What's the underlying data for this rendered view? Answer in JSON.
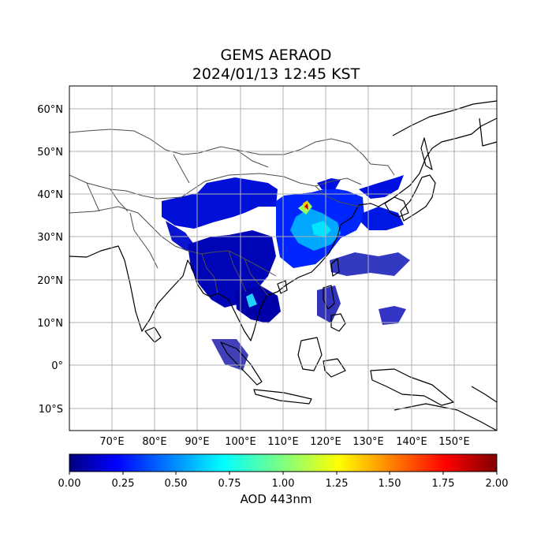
{
  "title": "GEMS AERAOD",
  "subtitle": "2024/01/13 12:45 KST",
  "map": {
    "lon_range": [
      60,
      160
    ],
    "lat_range": [
      -15,
      66
    ],
    "lon_ticks": [
      "70°E",
      "80°E",
      "90°E",
      "100°E",
      "110°E",
      "120°E",
      "130°E",
      "140°E",
      "150°E"
    ],
    "lat_ticks": [
      "60°N",
      "50°N",
      "40°N",
      "30°N",
      "20°N",
      "10°N",
      "0°",
      "10°S"
    ],
    "grid": true,
    "background": "#ffffff",
    "coastline_color": "#000000",
    "border_color": "#4d4d4d"
  },
  "colorbar": {
    "label": "AOD 443nm",
    "min": 0.0,
    "max": 2.0,
    "ticks": [
      "0.00",
      "0.25",
      "0.50",
      "0.75",
      "1.00",
      "1.25",
      "1.50",
      "1.75",
      "2.00"
    ],
    "colormap": "jet"
  }
}
